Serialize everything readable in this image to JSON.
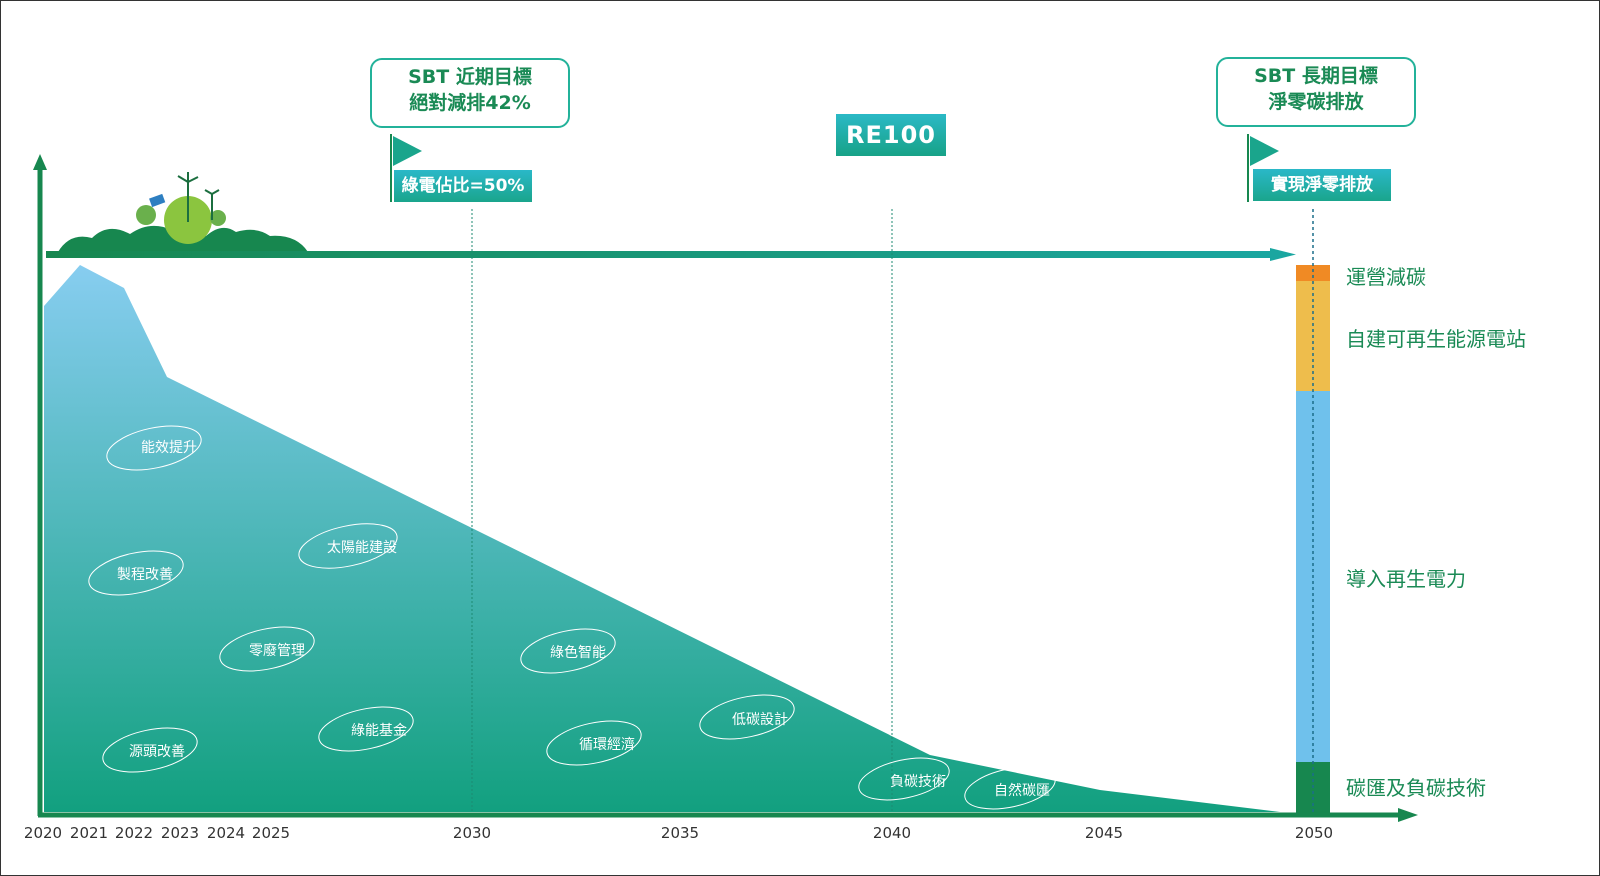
{
  "milestones": {
    "near_term": {
      "title": "SBT 近期目標",
      "subtitle": "絕對減排42%",
      "flag_label": "綠電佔比=50%"
    },
    "long_term": {
      "title": "SBT 長期目標",
      "subtitle": "淨零碳排放",
      "flag_label": "實現淨零排放"
    },
    "re100": "RE100"
  },
  "x_axis": {
    "ticks": [
      "2020",
      "2021",
      "2022",
      "2023",
      "2024",
      "2025",
      "2030",
      "2035",
      "2040",
      "2045",
      "2050"
    ]
  },
  "strategies": [
    "能效提升",
    "製程改善",
    "太陽能建設",
    "零廢管理",
    "源頭改善",
    "綠能基金",
    "綠色智能",
    "循環經濟",
    "低碳設計",
    "負碳技術",
    "自然碳匯"
  ],
  "legend": {
    "items": [
      {
        "label": "運營減碳",
        "color": "#f08a24"
      },
      {
        "label": "自建可再生能源電站",
        "color": "#eebd4c"
      },
      {
        "label": "導入再生電力",
        "color": "#6fc1ec"
      },
      {
        "label": "碳匯及負碳技術",
        "color": "#17874f"
      }
    ]
  },
  "colors": {
    "axis": "#17874f",
    "area_top": "#87cdf0",
    "area_bottom": "#12a07f",
    "timeline_bar": "#18a07c",
    "guide_line": "#1c8a72"
  }
}
